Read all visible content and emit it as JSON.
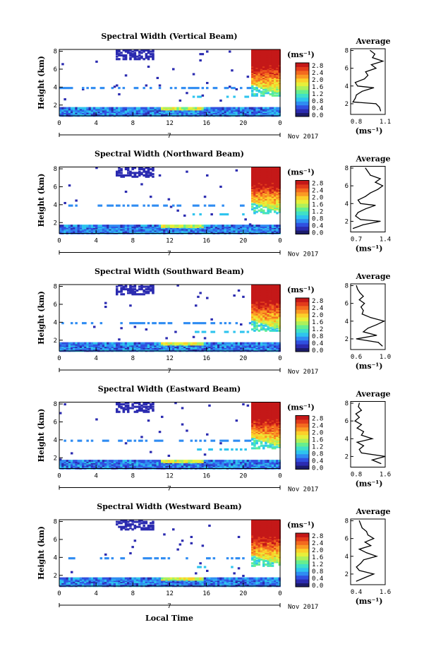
{
  "footer_label": "Local Time",
  "colors": {
    "colormap": [
      "#1c1c6a",
      "#2b2bb0",
      "#3050e0",
      "#2f8cf2",
      "#2ec4ee",
      "#3fe0c8",
      "#66ee8f",
      "#aef05a",
      "#e6ef3a",
      "#fbd02a",
      "#fa9a24",
      "#f36a1f",
      "#e23b1b",
      "#c41818"
    ]
  },
  "chart_data": [
    {
      "type": "heatmap",
      "title": "Spectral Width (Vertical Beam)",
      "ylabel": "Height (km)",
      "x_ticks": [
        "0",
        "4",
        "8",
        "12",
        "16",
        "20",
        "0"
      ],
      "y_ticks": [
        "2",
        "4",
        "6",
        "8"
      ],
      "date_label": "7",
      "month_label": "Nov 2017",
      "colorbar": {
        "unit": "(ms⁻¹)",
        "ticks": [
          "2.8",
          "2.4",
          "2.0",
          "1.6",
          "1.2",
          "0.8",
          "0.4",
          "0.0"
        ]
      },
      "profile": {
        "title": "Average",
        "x_ticks": [
          "0.8",
          "1.1"
        ],
        "xlim": [
          0.8,
          1.1
        ],
        "unit": "(ms⁻¹)",
        "heights": [
          1.2,
          1.6,
          2.0,
          2.2,
          2.6,
          3.0,
          3.4,
          3.6,
          3.8,
          4.0,
          4.4,
          4.8,
          5.2,
          5.6,
          6.0,
          6.4,
          6.8,
          7.2,
          7.6,
          8.0
        ],
        "values": [
          1.06,
          1.05,
          1.02,
          0.82,
          0.84,
          0.85,
          0.9,
          0.95,
          1.0,
          0.86,
          0.84,
          0.92,
          0.95,
          0.93,
          1.02,
          0.98,
          1.08,
          0.99,
          1.01,
          0.97
        ]
      }
    },
    {
      "type": "heatmap",
      "title": "Spectral Width (Northward Beam)",
      "ylabel": "Height (km)",
      "x_ticks": [
        "0",
        "4",
        "8",
        "12",
        "16",
        "20",
        "0"
      ],
      "y_ticks": [
        "2",
        "4",
        "6",
        "8"
      ],
      "date_label": "7",
      "month_label": "Nov 2017",
      "colorbar": {
        "unit": "(ms⁻¹)",
        "ticks": [
          "2.8",
          "2.4",
          "2.0",
          "1.6",
          "1.2",
          "0.8",
          "0.4",
          "0.0"
        ]
      },
      "profile": {
        "title": "Average",
        "x_ticks": [
          "0.7",
          "1.4"
        ],
        "xlim": [
          0.7,
          1.4
        ],
        "unit": "(ms⁻¹)",
        "heights": [
          1.2,
          1.6,
          2.0,
          2.2,
          2.6,
          3.0,
          3.4,
          3.8,
          4.0,
          4.4,
          4.8,
          5.2,
          5.6,
          6.0,
          6.4,
          6.8,
          7.2,
          7.6,
          8.0
        ],
        "values": [
          0.75,
          0.95,
          1.3,
          0.9,
          0.8,
          0.85,
          1.0,
          1.2,
          0.9,
          0.85,
          1.0,
          1.1,
          1.25,
          1.35,
          1.2,
          1.3,
          1.1,
          1.05,
          1.0
        ]
      }
    },
    {
      "type": "heatmap",
      "title": "Spectral Width (Southward Beam)",
      "ylabel": "Height (km)",
      "x_ticks": [
        "0",
        "4",
        "8",
        "12",
        "16",
        "20",
        "0"
      ],
      "y_ticks": [
        "2",
        "4",
        "6",
        "8"
      ],
      "date_label": "7",
      "month_label": "Nov 2017",
      "colorbar": {
        "unit": "(ms⁻¹)",
        "ticks": [
          "2.8",
          "2.4",
          "2.0",
          "1.6",
          "1.2",
          "0.8",
          "0.4",
          "0.0"
        ]
      },
      "profile": {
        "title": "Average",
        "x_ticks": [
          "0.6",
          "1.0"
        ],
        "xlim": [
          0.5,
          1.1
        ],
        "unit": "(ms⁻¹)",
        "heights": [
          1.2,
          1.6,
          2.0,
          2.4,
          2.8,
          3.2,
          3.6,
          4.0,
          4.4,
          4.8,
          5.2,
          5.6,
          6.0,
          6.4,
          6.8,
          7.2,
          7.6,
          8.0
        ],
        "values": [
          1.05,
          0.98,
          0.6,
          0.95,
          0.72,
          0.8,
          0.95,
          1.08,
          0.85,
          0.7,
          0.72,
          0.68,
          0.74,
          0.65,
          0.72,
          0.66,
          0.62,
          0.6
        ]
      }
    },
    {
      "type": "heatmap",
      "title": "Spectral Width (Eastward Beam)",
      "ylabel": "Height (km)",
      "x_ticks": [
        "0",
        "4",
        "8",
        "12",
        "16",
        "20",
        "0"
      ],
      "y_ticks": [
        "2",
        "4",
        "6",
        "8"
      ],
      "date_label": "7",
      "month_label": "Nov 2017",
      "colorbar": {
        "unit": "(ms⁻¹)",
        "ticks": [
          "2.8",
          "2.4",
          "2.0",
          "1.6",
          "1.2",
          "0.8",
          "0.4",
          "0.0"
        ]
      },
      "profile": {
        "title": "Average",
        "x_ticks": [
          "0.8",
          "1.6"
        ],
        "xlim": [
          0.8,
          1.6
        ],
        "unit": "(ms⁻¹)",
        "heights": [
          1.2,
          1.6,
          2.0,
          2.4,
          2.8,
          3.2,
          3.6,
          4.0,
          4.4,
          4.8,
          5.2,
          5.6,
          6.0,
          6.4,
          6.8,
          7.2,
          7.6,
          8.0
        ],
        "values": [
          1.5,
          1.3,
          1.6,
          1.05,
          1.0,
          1.1,
          0.95,
          1.3,
          1.05,
          1.1,
          0.95,
          1.05,
          0.9,
          1.0,
          0.92,
          1.05,
          0.98,
          1.0
        ]
      }
    },
    {
      "type": "heatmap",
      "title": "Spectral Width (Westward Beam)",
      "ylabel": "Height (km)",
      "x_ticks": [
        "0",
        "4",
        "8",
        "12",
        "16",
        "20",
        "0"
      ],
      "y_ticks": [
        "2",
        "4",
        "6",
        "8"
      ],
      "date_label": "7",
      "month_label": "Nov 2017",
      "colorbar": {
        "unit": "(ms⁻¹)",
        "ticks": [
          "2.8",
          "2.4",
          "2.0",
          "1.6",
          "1.2",
          "0.8",
          "0.4",
          "0.0"
        ]
      },
      "profile": {
        "title": "Average",
        "x_ticks": [
          "0.4",
          "1.6"
        ],
        "xlim": [
          0.4,
          1.6
        ],
        "unit": "(ms⁻¹)",
        "heights": [
          1.2,
          1.6,
          2.0,
          2.4,
          2.8,
          3.2,
          3.6,
          4.0,
          4.4,
          4.8,
          5.2,
          5.6,
          6.0,
          6.4,
          6.8,
          7.2,
          7.6,
          8.0
        ],
        "values": [
          0.6,
          0.9,
          1.2,
          0.7,
          0.6,
          0.75,
          0.85,
          1.3,
          0.95,
          0.7,
          1.1,
          0.9,
          1.2,
          1.0,
          0.95,
          0.8,
          0.75,
          0.7
        ]
      }
    }
  ]
}
